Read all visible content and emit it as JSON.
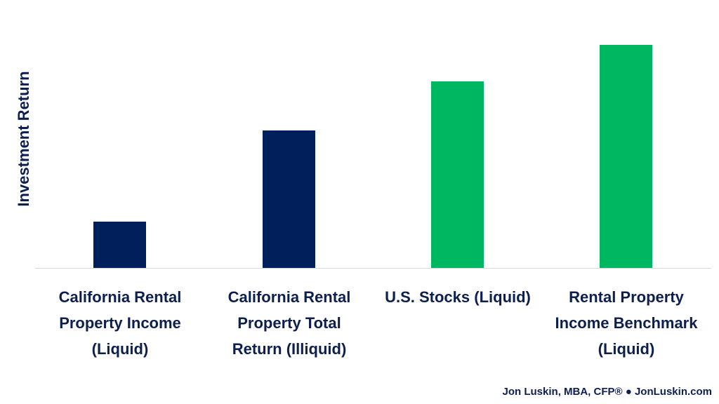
{
  "chart_data": {
    "type": "bar",
    "title": "",
    "xlabel": "",
    "ylabel": "Investment Return",
    "categories": [
      "California Rental Property Income (Liquid)",
      "California Rental Property Total Return (Illiquid)",
      "U.S. Stocks (Liquid)",
      "Rental Property Income Benchmark (Liquid)"
    ],
    "values": [
      66,
      196,
      266,
      318
    ],
    "value_units": "relative (no numeric axis shown; pixel heights)",
    "colors": [
      "#001f5b",
      "#001f5b",
      "#00b761",
      "#00b761"
    ],
    "ylim": [
      0,
      330
    ],
    "grid": false,
    "legend": "none"
  },
  "labels": {
    "ylabel": "Investment Return",
    "bars": [
      "California Rental\nProperty Income\n(Liquid)",
      "California Rental\nProperty Total\nReturn (Illiquid)",
      "U.S. Stocks (Liquid)",
      "Rental Property\nIncome Benchmark\n(Liquid)"
    ]
  },
  "credit": "Jon Luskin, MBA, CFP® ● JonLuskin.com"
}
